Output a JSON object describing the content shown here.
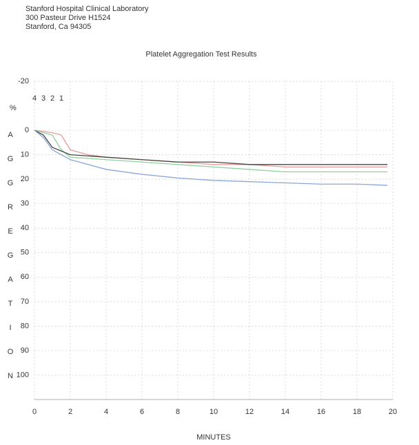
{
  "header": {
    "lines": [
      "Stanford Hospital Clinical Laboratory",
      "300 Pasteur Drive  H1524",
      "Stanford, Ca  94305"
    ]
  },
  "chart_data": {
    "type": "line",
    "title": "Platelet Aggregation Test Results",
    "xlabel": "MINUTES",
    "ylabel": "AGGREGATION",
    "yunit": "%",
    "xlim": [
      0,
      20
    ],
    "xticks": [
      0,
      2,
      4,
      6,
      8,
      10,
      12,
      14,
      16,
      18,
      20
    ],
    "ylim": [
      -20,
      110
    ],
    "yticks": [
      -20,
      0,
      10,
      20,
      30,
      40,
      50,
      60,
      70,
      80,
      90,
      100
    ],
    "y_inverted": true,
    "grid": true,
    "series": [
      {
        "name": "1",
        "color": "#e89a9a",
        "x": [
          0,
          1,
          1.5,
          2,
          3,
          4,
          6,
          8,
          10,
          12,
          14,
          16,
          18,
          19.7
        ],
        "values": [
          0,
          1,
          2,
          8,
          10,
          11,
          12,
          13,
          14,
          14,
          15,
          15,
          15,
          15
        ]
      },
      {
        "name": "2",
        "color": "#8fcf9a",
        "x": [
          0,
          1,
          1.5,
          2,
          4,
          6,
          8,
          10,
          12,
          14,
          16,
          18,
          19.7
        ],
        "values": [
          0,
          2,
          8,
          11,
          12,
          13,
          14,
          15,
          16,
          17,
          17,
          17,
          17
        ]
      },
      {
        "name": "3",
        "color": "#444444",
        "x": [
          0,
          0.5,
          1,
          2,
          4,
          6,
          8,
          10,
          12,
          14,
          16,
          18,
          19.7
        ],
        "values": [
          0,
          2,
          7,
          10,
          11,
          12,
          13,
          13,
          14,
          14,
          14,
          14,
          14
        ]
      },
      {
        "name": "4",
        "color": "#8aa6d6",
        "x": [
          0,
          0.5,
          1,
          2,
          4,
          6,
          8,
          10,
          12,
          14,
          16,
          18,
          19.7
        ],
        "values": [
          0,
          3,
          8,
          12,
          16,
          18,
          19.5,
          20.5,
          21,
          21.5,
          22,
          22,
          22.5
        ]
      }
    ]
  }
}
